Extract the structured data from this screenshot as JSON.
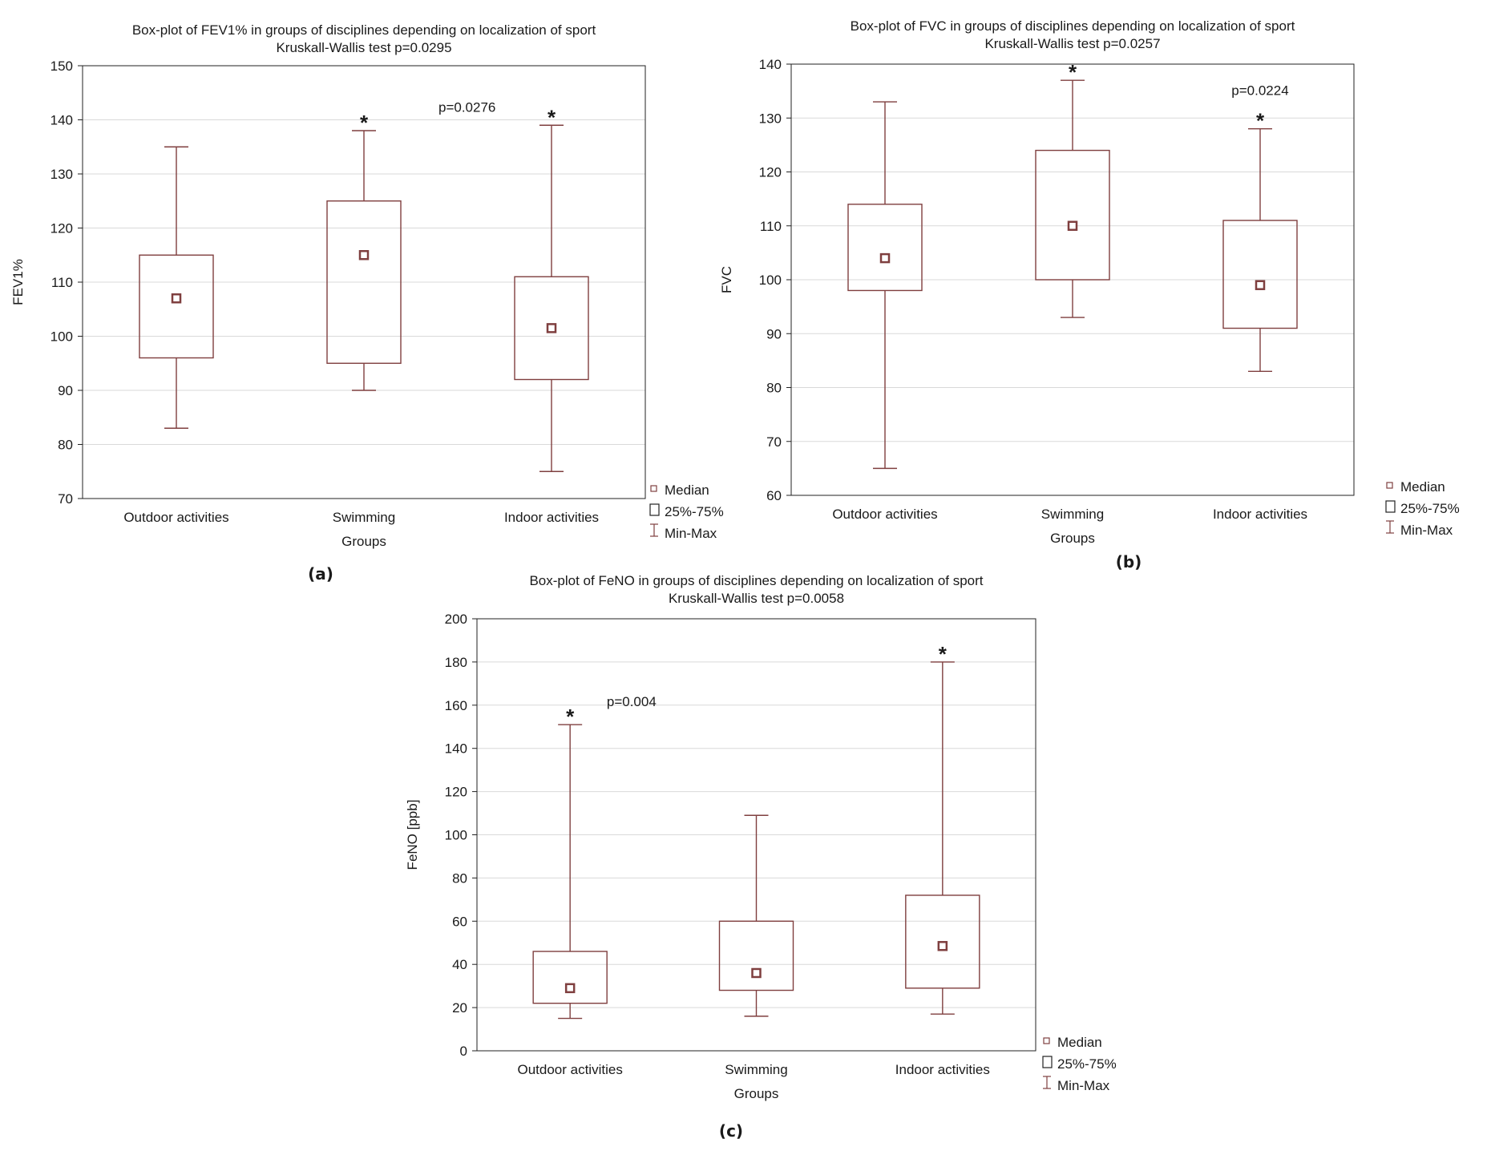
{
  "colors": {
    "box": "#7f3f3f",
    "grid": "#d9d9d9",
    "axis": "#222222",
    "background": "#ffffff",
    "marker_fill": "#7f3f3f"
  },
  "chart_data": [
    {
      "type": "boxplot",
      "panel_label": "(a)",
      "title": "Box-plot of FEV1% in groups of disciplines depending on localization of sport",
      "subtitle": "Kruskall-Wallis test p=0.0295",
      "xlabel": "Groups",
      "ylabel": "FEV1%",
      "ylim": [
        70,
        150
      ],
      "yticks": [
        70,
        80,
        90,
        100,
        110,
        120,
        130,
        140,
        150
      ],
      "grid": true,
      "categories": [
        "Outdoor activities",
        "Swimming",
        "Indoor activities"
      ],
      "series": [
        {
          "name": "Outdoor activities",
          "min": 83,
          "q1": 96,
          "median": 107,
          "q3": 115,
          "max": 135,
          "star": false
        },
        {
          "name": "Swimming",
          "min": 90,
          "q1": 95,
          "median": 115,
          "q3": 125,
          "max": 138,
          "star": true
        },
        {
          "name": "Indoor activities",
          "min": 75,
          "q1": 92,
          "median": 101.5,
          "q3": 111,
          "max": 139,
          "star": true
        }
      ],
      "annotations": [
        {
          "text": "p=0.0276",
          "x": 1.55,
          "y": 141.5
        }
      ],
      "legend": [
        "Median",
        "25%-75%",
        "Min-Max"
      ],
      "legend_placement": "bottom-right"
    },
    {
      "type": "boxplot",
      "panel_label": "(b)",
      "title": "Box-plot of FVC in groups of disciplines depending on localization of sport",
      "subtitle": "Kruskall-Wallis test p=0.0257",
      "xlabel": "Groups",
      "ylabel": "FVC",
      "ylim": [
        60,
        140
      ],
      "yticks": [
        60,
        70,
        80,
        90,
        100,
        110,
        120,
        130,
        140
      ],
      "grid": true,
      "categories": [
        "Outdoor activities",
        "Swimming",
        "Indoor activities"
      ],
      "series": [
        {
          "name": "Outdoor activities",
          "min": 65,
          "q1": 98,
          "median": 104,
          "q3": 114,
          "max": 133,
          "star": false
        },
        {
          "name": "Swimming",
          "min": 93,
          "q1": 100,
          "median": 110,
          "q3": 124,
          "max": 137,
          "star": true
        },
        {
          "name": "Indoor activities",
          "min": 83,
          "q1": 91,
          "median": 99,
          "q3": 111,
          "max": 128,
          "star": true
        }
      ],
      "annotations": [
        {
          "text": "p=0.0224",
          "x": 2.0,
          "y": 134.3
        }
      ],
      "legend": [
        "Median",
        "25%-75%",
        "Min-Max"
      ],
      "legend_placement": "bottom-right"
    },
    {
      "type": "boxplot",
      "panel_label": "(c)",
      "title": "Box-plot of FeNO in groups of disciplines depending on localization of sport",
      "subtitle": "Kruskall-Wallis test p=0.0058",
      "xlabel": "Groups",
      "ylabel": "FeNO [ppb]",
      "ylim": [
        0,
        200
      ],
      "yticks": [
        0,
        20,
        40,
        60,
        80,
        100,
        120,
        140,
        160,
        180,
        200
      ],
      "grid": true,
      "categories": [
        "Outdoor activities",
        "Swimming",
        "Indoor activities"
      ],
      "series": [
        {
          "name": "Outdoor activities",
          "min": 15,
          "q1": 22,
          "median": 29,
          "q3": 46,
          "max": 151,
          "star": true
        },
        {
          "name": "Swimming",
          "min": 16,
          "q1": 28,
          "median": 36,
          "q3": 60,
          "max": 109,
          "star": false
        },
        {
          "name": "Indoor activities",
          "min": 17,
          "q1": 29,
          "median": 48.5,
          "q3": 72,
          "max": 180,
          "star": true
        }
      ],
      "annotations": [
        {
          "text": "p=0.004",
          "x": 0.33,
          "y": 159.5
        }
      ],
      "legend": [
        "Median",
        "25%-75%",
        "Min-Max"
      ],
      "legend_placement": "bottom-right"
    }
  ]
}
